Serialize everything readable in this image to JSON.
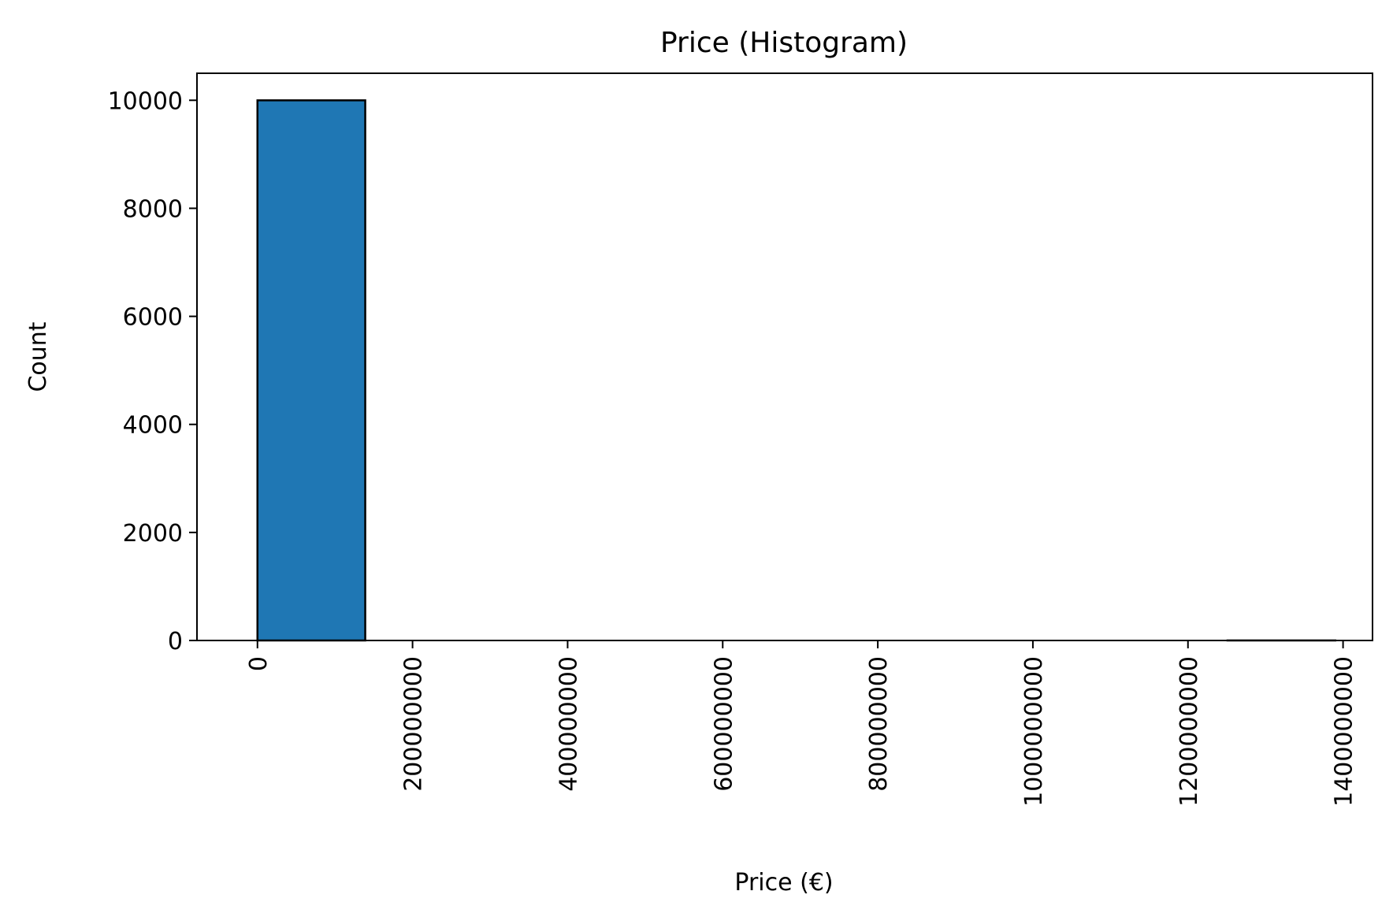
{
  "chart_data": {
    "type": "bar",
    "title": "Price (Histogram)",
    "xlabel": "Price (€)",
    "ylabel": "Count",
    "xlim": [
      -78000000,
      1438000000
    ],
    "ylim": [
      0,
      10500
    ],
    "x_ticks": [
      0,
      200000000,
      400000000,
      600000000,
      800000000,
      1000000000,
      1200000000,
      1400000000
    ],
    "x_tick_labels": [
      "0",
      "200000000",
      "400000000",
      "600000000",
      "800000000",
      "1000000000",
      "1200000000",
      "1400000000"
    ],
    "y_ticks": [
      0,
      2000,
      4000,
      6000,
      8000,
      10000
    ],
    "y_tick_labels": [
      "0",
      "2000",
      "4000",
      "6000",
      "8000",
      "10000"
    ],
    "bins": [
      {
        "start": 0,
        "end": 139000000,
        "count": 9999
      },
      {
        "start": 139000000,
        "end": 278000000,
        "count": 0
      },
      {
        "start": 278000000,
        "end": 417000000,
        "count": 0
      },
      {
        "start": 417000000,
        "end": 556000000,
        "count": 0
      },
      {
        "start": 556000000,
        "end": 695000000,
        "count": 0
      },
      {
        "start": 695000000,
        "end": 834000000,
        "count": 0
      },
      {
        "start": 834000000,
        "end": 973000000,
        "count": 0
      },
      {
        "start": 973000000,
        "end": 1112000000,
        "count": 0
      },
      {
        "start": 1112000000,
        "end": 1251000000,
        "count": 0
      },
      {
        "start": 1251000000,
        "end": 1390000000,
        "count": 1
      }
    ],
    "bar_color": "#1f77b4",
    "edge_color": "#000000",
    "grid": false,
    "legend": "none"
  }
}
